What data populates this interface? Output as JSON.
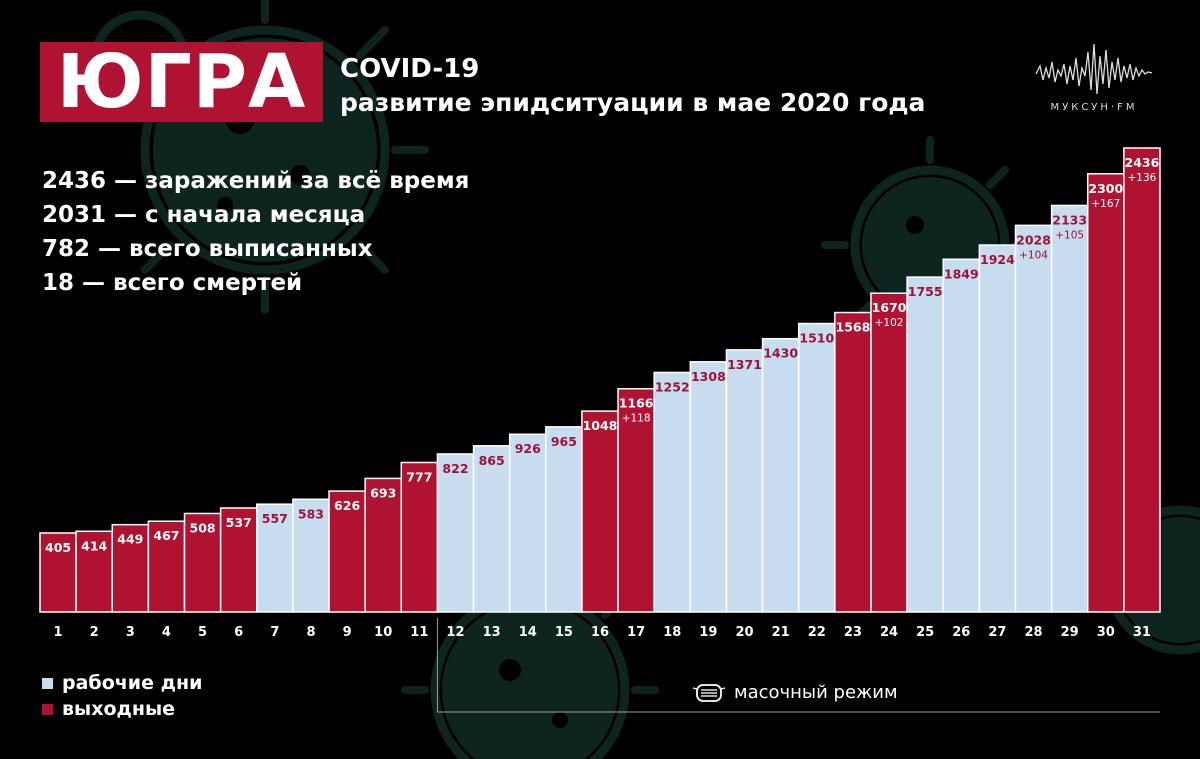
{
  "header": {
    "region": "ЮГРА",
    "title": "COVID-19",
    "subtitle": "развитие эпидситуации в мае 2020 года"
  },
  "logo": {
    "text": "МУКСУН·FM"
  },
  "stats": [
    "2436 — заражений за всё время",
    "2031 — с начала месяца",
    "782 — всего выписанных",
    "18 — всего смертей"
  ],
  "legend": {
    "workdays": "рабочие дни",
    "weekends": "выходные"
  },
  "annotation": {
    "mask_regime": "масочный режим"
  },
  "colors": {
    "background": "#000000",
    "workday": "#c8dcf0",
    "weekend": "#b01231",
    "workday_text": "#a01238",
    "weekend_text": "#ffffff"
  },
  "chart_data": {
    "type": "bar",
    "categories": [
      "1",
      "2",
      "3",
      "4",
      "5",
      "6",
      "7",
      "8",
      "9",
      "10",
      "11",
      "12",
      "13",
      "14",
      "15",
      "16",
      "17",
      "18",
      "19",
      "20",
      "21",
      "22",
      "23",
      "24",
      "25",
      "26",
      "27",
      "28",
      "29",
      "30",
      "31"
    ],
    "values": [
      405,
      414,
      449,
      467,
      508,
      537,
      557,
      583,
      626,
      693,
      777,
      822,
      865,
      926,
      965,
      1048,
      1166,
      1252,
      1308,
      1371,
      1430,
      1510,
      1568,
      1670,
      1755,
      1849,
      1924,
      2028,
      2133,
      2300,
      2436
    ],
    "day_type": [
      "weekend",
      "weekend",
      "weekend",
      "weekend",
      "weekend",
      "weekend",
      "workday",
      "workday",
      "weekend",
      "weekend",
      "weekend",
      "workday",
      "workday",
      "workday",
      "workday",
      "weekend",
      "weekend",
      "workday",
      "workday",
      "workday",
      "workday",
      "workday",
      "weekend",
      "weekend",
      "workday",
      "workday",
      "workday",
      "workday",
      "workday",
      "weekend",
      "weekend"
    ],
    "increments": [
      {
        "day": "17",
        "label": "+118"
      },
      {
        "day": "24",
        "label": "+102"
      },
      {
        "day": "28",
        "label": "+104"
      },
      {
        "day": "29",
        "label": "+105"
      },
      {
        "day": "30",
        "label": "+167"
      },
      {
        "day": "31",
        "label": "+136"
      }
    ],
    "mask_regime_start_day": "12",
    "xlabel": "",
    "ylabel": ""
  }
}
